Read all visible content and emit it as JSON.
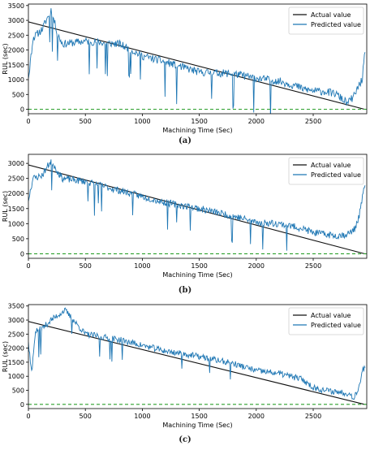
{
  "figure": {
    "captions": [
      "(a)",
      "(b)",
      "(c)"
    ]
  },
  "chart_data": [
    {
      "type": "line",
      "panel": "a",
      "xlabel": "Machining Time (Sec)",
      "ylabel": "RUL (sec)",
      "xlim": [
        0,
        2970
      ],
      "ylim": [
        -150,
        3550
      ],
      "xticks": [
        0,
        500,
        1000,
        1500,
        2000,
        2500
      ],
      "yticks": [
        0,
        500,
        1000,
        1500,
        2000,
        2500,
        3000,
        3500
      ],
      "grid": false,
      "legend_position": "top-right",
      "series": [
        {
          "name": "Actual value",
          "color": "#111111",
          "style": "solid",
          "x": [
            0,
            2950
          ],
          "y": [
            2950,
            0
          ]
        },
        {
          "name": "Predicted value",
          "color": "#1f77b4",
          "style": "solid",
          "seed": 11,
          "start": 1200,
          "end_jump": 1800,
          "noise": 260,
          "spikes": 18,
          "spike_depth": 1300,
          "anchors": [
            [
              0,
              1000
            ],
            [
              40,
              2400
            ],
            [
              120,
              2700
            ],
            [
              200,
              3350
            ],
            [
              260,
              2500
            ],
            [
              300,
              2200
            ],
            [
              500,
              2300
            ],
            [
              800,
              2200
            ],
            [
              1000,
              1800
            ],
            [
              1200,
              1600
            ],
            [
              1500,
              1250
            ],
            [
              1800,
              1200
            ],
            [
              2000,
              1050
            ],
            [
              2200,
              950
            ],
            [
              2340,
              800
            ],
            [
              2400,
              700
            ],
            [
              2500,
              620
            ],
            [
              2600,
              600
            ],
            [
              2700,
              520
            ],
            [
              2800,
              200
            ],
            [
              2860,
              450
            ],
            [
              2900,
              800
            ],
            [
              2930,
              1000
            ],
            [
              2950,
              1800
            ]
          ]
        },
        {
          "name": "",
          "color": "#2ca02c",
          "style": "dashed",
          "x": [
            0,
            2970
          ],
          "y": [
            0,
            0
          ]
        }
      ]
    },
    {
      "type": "line",
      "panel": "b",
      "xlabel": "Machining Time (Sec)",
      "ylabel": "RUL (sec)",
      "xlim": [
        0,
        2970
      ],
      "ylim": [
        -150,
        3300
      ],
      "xticks": [
        0,
        500,
        1000,
        1500,
        2000,
        2500
      ],
      "yticks": [
        0,
        500,
        1000,
        1500,
        2000,
        2500,
        3000
      ],
      "grid": false,
      "legend_position": "top-right",
      "series": [
        {
          "name": "Actual value",
          "color": "#111111",
          "style": "solid",
          "x": [
            0,
            2950
          ],
          "y": [
            2950,
            0
          ]
        },
        {
          "name": "Predicted value",
          "color": "#1f77b4",
          "style": "solid",
          "seed": 23,
          "start": 1800,
          "end_jump": 2250,
          "noise": 230,
          "spikes": 14,
          "spike_depth": 1000,
          "anchors": [
            [
              0,
              1800
            ],
            [
              40,
              2500
            ],
            [
              120,
              2600
            ],
            [
              200,
              3100
            ],
            [
              260,
              2700
            ],
            [
              300,
              2500
            ],
            [
              500,
              2400
            ],
            [
              800,
              2100
            ],
            [
              1000,
              1900
            ],
            [
              1200,
              1700
            ],
            [
              1500,
              1500
            ],
            [
              1800,
              1250
            ],
            [
              2000,
              1050
            ],
            [
              2200,
              1000
            ],
            [
              2400,
              850
            ],
            [
              2500,
              700
            ],
            [
              2600,
              650
            ],
            [
              2700,
              600
            ],
            [
              2800,
              650
            ],
            [
              2860,
              800
            ],
            [
              2900,
              1200
            ],
            [
              2930,
              1800
            ],
            [
              2950,
              2250
            ]
          ]
        },
        {
          "name": "",
          "color": "#2ca02c",
          "style": "dashed",
          "x": [
            0,
            2970
          ],
          "y": [
            0,
            0
          ]
        }
      ]
    },
    {
      "type": "line",
      "panel": "c",
      "xlabel": "Machining Time (Sec)",
      "ylabel": "RUL (sec)",
      "xlim": [
        0,
        2970
      ],
      "ylim": [
        -150,
        3550
      ],
      "xticks": [
        0,
        500,
        1000,
        1500,
        2000,
        2500
      ],
      "yticks": [
        0,
        500,
        1000,
        1500,
        2000,
        2500,
        3000,
        3500
      ],
      "grid": false,
      "legend_position": "top-right",
      "series": [
        {
          "name": "Actual value",
          "color": "#111111",
          "style": "solid",
          "x": [
            0,
            2950
          ],
          "y": [
            2950,
            0
          ]
        },
        {
          "name": "Predicted value",
          "color": "#1f77b4",
          "style": "solid",
          "seed": 37,
          "start": 2000,
          "end_jump": 1300,
          "noise": 220,
          "spikes": 10,
          "spike_depth": 900,
          "anchors": [
            [
              0,
              2200
            ],
            [
              30,
              1100
            ],
            [
              60,
              2600
            ],
            [
              120,
              2700
            ],
            [
              200,
              3000
            ],
            [
              320,
              3350
            ],
            [
              500,
              2500
            ],
            [
              800,
              2300
            ],
            [
              1000,
              2100
            ],
            [
              1200,
              1900
            ],
            [
              1500,
              1700
            ],
            [
              1800,
              1450
            ],
            [
              2000,
              1200
            ],
            [
              2200,
              1100
            ],
            [
              2400,
              900
            ],
            [
              2500,
              600
            ],
            [
              2600,
              500
            ],
            [
              2700,
              450
            ],
            [
              2800,
              400
            ],
            [
              2860,
              250
            ],
            [
              2900,
              600
            ],
            [
              2930,
              1200
            ],
            [
              2950,
              1300
            ]
          ]
        },
        {
          "name": "",
          "color": "#2ca02c",
          "style": "dashed",
          "x": [
            0,
            2970
          ],
          "y": [
            0,
            0
          ]
        }
      ]
    }
  ]
}
